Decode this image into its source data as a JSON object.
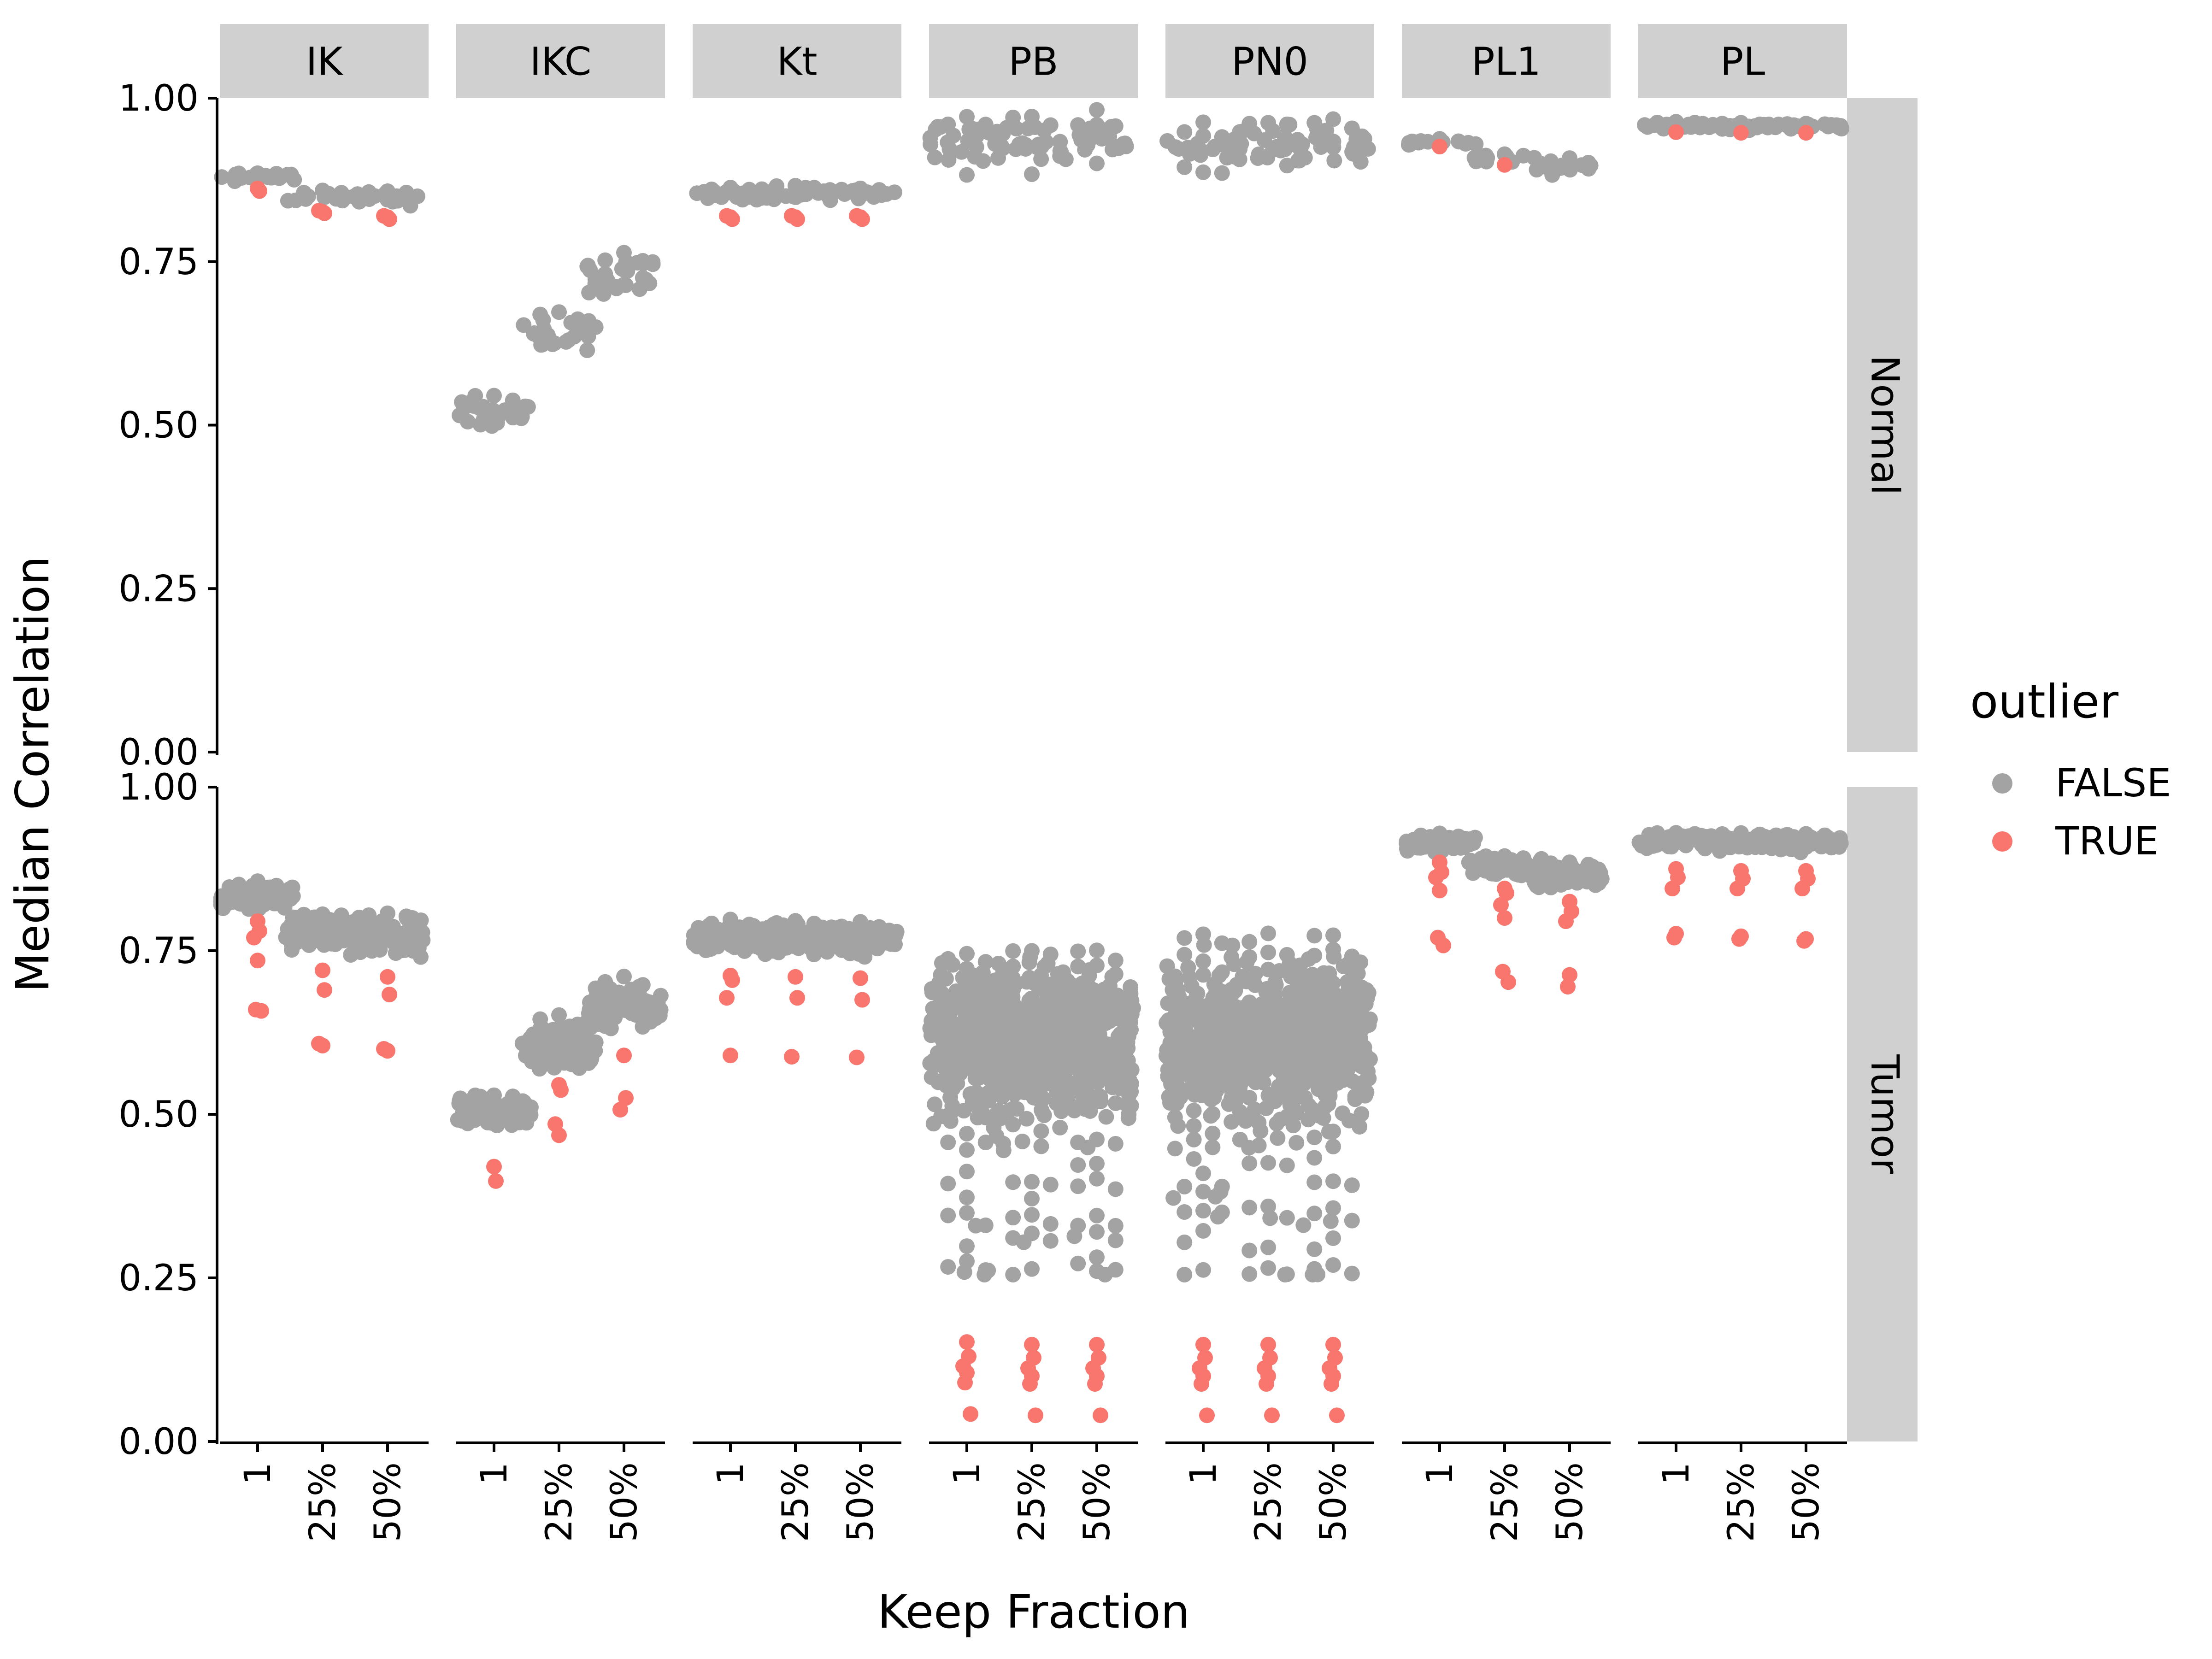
{
  "chart_data": {
    "type": "scatter",
    "subtype": "faceted beeswarm",
    "xlabel": "Keep Fraction",
    "ylabel": "Median Correlation",
    "ylim": [
      0,
      1
    ],
    "y_ticks": [
      "0.00",
      "0.25",
      "0.50",
      "0.75",
      "1.00"
    ],
    "x_categories": [
      "1",
      "25%",
      "50%"
    ],
    "column_facets": [
      "IK",
      "IKC",
      "Kt",
      "PB",
      "PN0",
      "PL1",
      "PL"
    ],
    "row_facets": [
      "Normal",
      "Tumor"
    ],
    "legend": {
      "title": "outlier",
      "placement": "right",
      "entries": [
        {
          "label": "FALSE",
          "color": "#a3a3a3"
        },
        {
          "label": "TRUE",
          "color": "#f8766d"
        }
      ]
    },
    "grid": false,
    "groups": {
      "Normal": {
        "IK": {
          "1": {
            "center": 0.88,
            "spread": 0.006,
            "n": 20,
            "outliers": [
              0.862,
              0.858
            ]
          },
          "25%": {
            "center": 0.85,
            "spread": 0.006,
            "n": 20,
            "outliers": [
              0.826,
              0.824,
              0.828
            ]
          },
          "50%": {
            "center": 0.847,
            "spread": 0.008,
            "n": 18,
            "outliers": [
              0.818,
              0.815,
              0.82
            ]
          }
        },
        "IKC": {
          "1": {
            "center": 0.522,
            "spread": 0.014,
            "n": 30,
            "outliers": []
          },
          "25%": {
            "center": 0.642,
            "spread": 0.02,
            "n": 30,
            "outliers": []
          },
          "50%": {
            "center": 0.722,
            "spread": 0.025,
            "n": 30,
            "outliers": []
          }
        },
        "Kt": {
          "1": {
            "center": 0.855,
            "spread": 0.007,
            "n": 24,
            "outliers": [
              0.818,
              0.815,
              0.82
            ]
          },
          "25%": {
            "center": 0.855,
            "spread": 0.007,
            "n": 24,
            "outliers": [
              0.818,
              0.815,
              0.82
            ]
          },
          "50%": {
            "center": 0.855,
            "spread": 0.007,
            "n": 24,
            "outliers": [
              0.818,
              0.815,
              0.82
            ]
          }
        },
        "PB": {
          "1": {
            "center": 0.935,
            "spread": 0.025,
            "n": 28,
            "outliers": []
          },
          "25%": {
            "center": 0.935,
            "spread": 0.025,
            "n": 28,
            "outliers": []
          },
          "50%": {
            "center": 0.935,
            "spread": 0.025,
            "n": 28,
            "outliers": []
          }
        },
        "PN0": {
          "1": {
            "center": 0.93,
            "spread": 0.025,
            "n": 28,
            "outliers": []
          },
          "25%": {
            "center": 0.93,
            "spread": 0.025,
            "n": 28,
            "outliers": []
          },
          "50%": {
            "center": 0.93,
            "spread": 0.025,
            "n": 28,
            "outliers": []
          }
        },
        "PL1": {
          "1": {
            "center": 0.933,
            "spread": 0.004,
            "n": 14,
            "outliers": [
              0.926
            ]
          },
          "25%": {
            "center": 0.908,
            "spread": 0.006,
            "n": 14,
            "outliers": [
              0.898
            ]
          },
          "50%": {
            "center": 0.895,
            "spread": 0.008,
            "n": 14,
            "outliers": []
          }
        },
        "PL": {
          "1": {
            "center": 0.958,
            "spread": 0.004,
            "n": 24,
            "outliers": [
              0.948
            ]
          },
          "25%": {
            "center": 0.957,
            "spread": 0.004,
            "n": 24,
            "outliers": [
              0.947
            ]
          },
          "50%": {
            "center": 0.957,
            "spread": 0.004,
            "n": 24,
            "outliers": [
              0.947
            ]
          }
        }
      },
      "Tumor": {
        "IK": {
          "1": {
            "center": 0.83,
            "spread": 0.015,
            "n": 90,
            "outliers": [
              0.795,
              0.78,
              0.77,
              0.735,
              0.66,
              0.658
            ]
          },
          "25%": {
            "center": 0.78,
            "spread": 0.018,
            "n": 90,
            "outliers": [
              0.72,
              0.69,
              0.608,
              0.605
            ]
          },
          "50%": {
            "center": 0.772,
            "spread": 0.02,
            "n": 90,
            "outliers": [
              0.71,
              0.683,
              0.6,
              0.597
            ]
          }
        },
        "IKC": {
          "1": {
            "center": 0.505,
            "spread": 0.015,
            "n": 80,
            "outliers": [
              0.42,
              0.398
            ]
          },
          "25%": {
            "center": 0.605,
            "spread": 0.025,
            "n": 90,
            "outliers": [
              0.545,
              0.537,
              0.485,
              0.468
            ]
          },
          "50%": {
            "center": 0.665,
            "spread": 0.025,
            "n": 90,
            "outliers": [
              0.59,
              0.525,
              0.507
            ]
          }
        },
        "Kt": {
          "1": {
            "center": 0.77,
            "spread": 0.015,
            "n": 90,
            "outliers": [
              0.712,
              0.705,
              0.678,
              0.59
            ]
          },
          "25%": {
            "center": 0.77,
            "spread": 0.015,
            "n": 90,
            "outliers": [
              0.71,
              0.678,
              0.588
            ]
          },
          "50%": {
            "center": 0.77,
            "spread": 0.015,
            "n": 90,
            "outliers": [
              0.708,
              0.675,
              0.587
            ]
          }
        },
        "PB": {
          "1": {
            "center": 0.62,
            "spread": 0.08,
            "n": 260,
            "tail_min": 0.255,
            "outliers": [
              0.152,
              0.13,
              0.115,
              0.105,
              0.09,
              0.042
            ]
          },
          "25%": {
            "center": 0.62,
            "spread": 0.08,
            "n": 260,
            "tail_min": 0.255,
            "outliers": [
              0.148,
              0.128,
              0.112,
              0.1,
              0.088,
              0.04
            ]
          },
          "50%": {
            "center": 0.62,
            "spread": 0.08,
            "n": 260,
            "tail_min": 0.255,
            "outliers": [
              0.148,
              0.128,
              0.112,
              0.1,
              0.088,
              0.04
            ]
          }
        },
        "PN0": {
          "1": {
            "center": 0.62,
            "spread": 0.08,
            "n": 260,
            "tail_min": 0.255,
            "outliers": [
              0.148,
              0.128,
              0.112,
              0.1,
              0.088,
              0.04
            ]
          },
          "25%": {
            "center": 0.62,
            "spread": 0.08,
            "n": 260,
            "tail_min": 0.255,
            "outliers": [
              0.148,
              0.128,
              0.112,
              0.1,
              0.088,
              0.04
            ]
          },
          "50%": {
            "center": 0.62,
            "spread": 0.08,
            "n": 260,
            "tail_min": 0.255,
            "outliers": [
              0.148,
              0.128,
              0.112,
              0.1,
              0.088,
              0.04
            ]
          }
        },
        "PL1": {
          "1": {
            "center": 0.915,
            "spread": 0.008,
            "n": 70,
            "outliers": [
              0.885,
              0.87,
              0.862,
              0.842,
              0.77,
              0.758
            ]
          },
          "25%": {
            "center": 0.88,
            "spread": 0.012,
            "n": 70,
            "outliers": [
              0.845,
              0.838,
              0.82,
              0.8,
              0.718,
              0.702
            ]
          },
          "50%": {
            "center": 0.865,
            "spread": 0.015,
            "n": 70,
            "outliers": [
              0.825,
              0.81,
              0.795,
              0.713,
              0.695
            ]
          }
        },
        "PL": {
          "1": {
            "center": 0.918,
            "spread": 0.008,
            "n": 80,
            "outliers": [
              0.875,
              0.862,
              0.845,
              0.776,
              0.77
            ]
          },
          "25%": {
            "center": 0.917,
            "spread": 0.008,
            "n": 80,
            "outliers": [
              0.872,
              0.86,
              0.845,
              0.772,
              0.768
            ]
          },
          "50%": {
            "center": 0.916,
            "spread": 0.008,
            "n": 80,
            "outliers": [
              0.872,
              0.86,
              0.845,
              0.768,
              0.765
            ]
          }
        }
      }
    }
  },
  "colors": {
    "false": "#a3a3a3",
    "true": "#f8766d",
    "strip": "#d0d0d0",
    "axis": "#000000"
  }
}
